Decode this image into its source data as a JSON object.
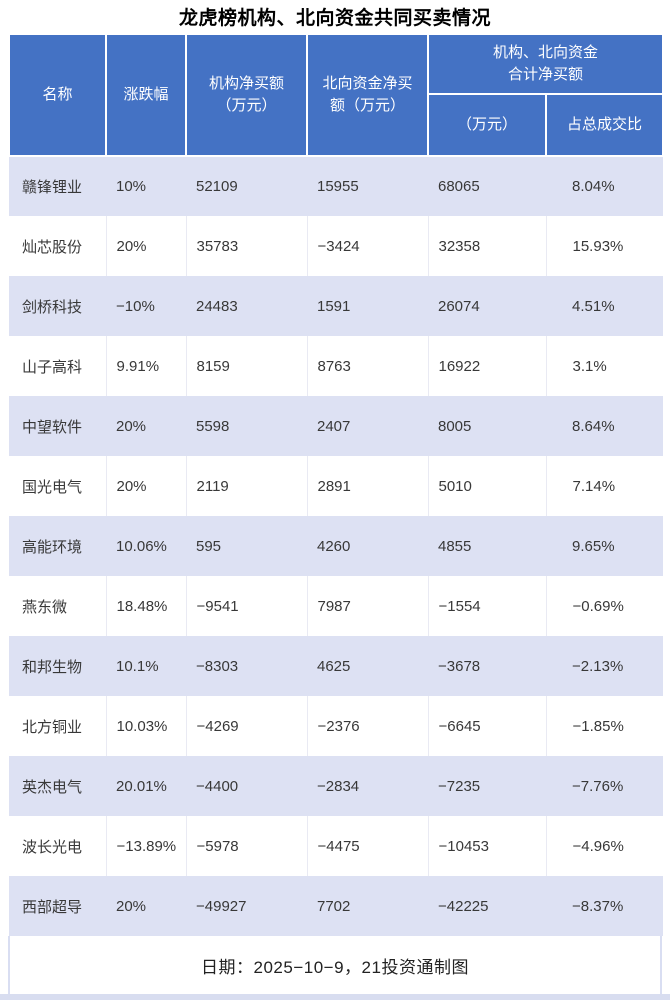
{
  "title": "龙虎榜机构、北向资金共同买卖情况",
  "colors": {
    "header_bg": "#4472c4",
    "header_text": "#ffffff",
    "row_alt_bg": "#dde1f3",
    "row_bg": "#ffffff",
    "divider": "#e9eaf3",
    "accent_strip": "#d8ddf0",
    "body_text": "#383838"
  },
  "table": {
    "header": {
      "name": "名称",
      "change": "涨跌幅",
      "inst_line1": "机构净买额",
      "inst_line2": "（万元）",
      "north_line1": "北向资金净买",
      "north_line2": "额（万元）",
      "combo_line1": "机构、北向资金",
      "combo_line2": "合计净买额",
      "combo_amount": "（万元）",
      "combo_ratio": "占总成交比"
    },
    "rows": [
      {
        "name": "赣锋锂业",
        "change": "10%",
        "inst": "52109",
        "north": "15955",
        "total": "68065",
        "ratio": "8.04%"
      },
      {
        "name": "灿芯股份",
        "change": "20%",
        "inst": "35783",
        "north": "−3424",
        "total": "32358",
        "ratio": "15.93%"
      },
      {
        "name": "剑桥科技",
        "change": "−10%",
        "inst": "24483",
        "north": "1591",
        "total": "26074",
        "ratio": "4.51%"
      },
      {
        "name": "山子高科",
        "change": "9.91%",
        "inst": "8159",
        "north": "8763",
        "total": "16922",
        "ratio": "3.1%"
      },
      {
        "name": "中望软件",
        "change": "20%",
        "inst": "5598",
        "north": "2407",
        "total": "8005",
        "ratio": "8.64%"
      },
      {
        "name": "国光电气",
        "change": "20%",
        "inst": "2119",
        "north": "2891",
        "total": "5010",
        "ratio": "7.14%"
      },
      {
        "name": "高能环境",
        "change": "10.06%",
        "inst": "595",
        "north": "4260",
        "total": "4855",
        "ratio": "9.65%"
      },
      {
        "name": "燕东微",
        "change": "18.48%",
        "inst": "−9541",
        "north": "7987",
        "total": "−1554",
        "ratio": "−0.69%"
      },
      {
        "name": "和邦生物",
        "change": "10.1%",
        "inst": "−8303",
        "north": "4625",
        "total": "−3678",
        "ratio": "−2.13%"
      },
      {
        "name": "北方铜业",
        "change": "10.03%",
        "inst": "−4269",
        "north": "−2376",
        "total": "−6645",
        "ratio": "−1.85%"
      },
      {
        "name": "英杰电气",
        "change": "20.01%",
        "inst": "−4400",
        "north": "−2834",
        "total": "−7235",
        "ratio": "−7.76%"
      },
      {
        "name": "波长光电",
        "change": "−13.89%",
        "inst": "−5978",
        "north": "−4475",
        "total": "−10453",
        "ratio": "−4.96%"
      },
      {
        "name": "西部超导",
        "change": "20%",
        "inst": "−49927",
        "north": "7702",
        "total": "−42225",
        "ratio": "−8.37%"
      }
    ]
  },
  "footer": {
    "note": "日期：2025−10−9，21投资通制图"
  },
  "chart_data": {
    "type": "table",
    "title": "龙虎榜机构、北向资金共同买卖情况",
    "columns": [
      "名称",
      "涨跌幅",
      "机构净买额（万元）",
      "北向资金净买额（万元）",
      "机构、北向资金合计净买额（万元）",
      "机构、北向资金合计净买额占总成交比"
    ],
    "rows": [
      [
        "赣锋锂业",
        "10%",
        52109,
        15955,
        68065,
        "8.04%"
      ],
      [
        "灿芯股份",
        "20%",
        35783,
        -3424,
        32358,
        "15.93%"
      ],
      [
        "剑桥科技",
        "-10%",
        24483,
        1591,
        26074,
        "4.51%"
      ],
      [
        "山子高科",
        "9.91%",
        8159,
        8763,
        16922,
        "3.1%"
      ],
      [
        "中望软件",
        "20%",
        5598,
        2407,
        8005,
        "8.64%"
      ],
      [
        "国光电气",
        "20%",
        2119,
        2891,
        5010,
        "7.14%"
      ],
      [
        "高能环境",
        "10.06%",
        595,
        4260,
        4855,
        "9.65%"
      ],
      [
        "燕东微",
        "18.48%",
        -9541,
        7987,
        -1554,
        "-0.69%"
      ],
      [
        "和邦生物",
        "10.1%",
        -8303,
        4625,
        -3678,
        "-2.13%"
      ],
      [
        "北方铜业",
        "10.03%",
        -4269,
        -2376,
        -6645,
        "-1.85%"
      ],
      [
        "英杰电气",
        "20.01%",
        -4400,
        -2834,
        -7235,
        "-7.76%"
      ],
      [
        "波长光电",
        "-13.89%",
        -5978,
        -4475,
        -10453,
        "-4.96%"
      ],
      [
        "西部超导",
        "20%",
        -49927,
        7702,
        -42225,
        "-8.37%"
      ]
    ],
    "note": "日期：2025-10-9，21投资通制图"
  }
}
